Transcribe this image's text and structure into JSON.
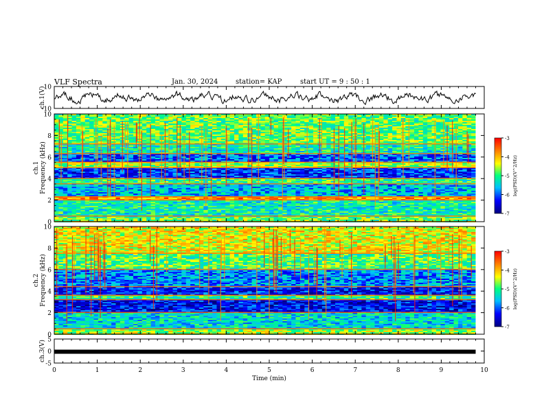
{
  "header": {
    "title": "VLF Spectra",
    "date": "Jan. 30, 2024",
    "station": "station= KAP",
    "start": "start  UT =   9 : 50 : 1"
  },
  "chart_data": [
    {
      "type": "line",
      "panel": "ch1-waveform",
      "ylabel": "ch.1(V)",
      "ylim": [
        -10,
        10
      ],
      "yticks": [
        "10",
        "-10"
      ],
      "xlim": [
        0,
        10
      ],
      "x_range_of_data": [
        0,
        9.8
      ],
      "approx_shape": "noisy oscillation centered near 0 V, amplitude about ±4 V"
    },
    {
      "type": "heatmap",
      "panel": "ch1-spectrogram",
      "ylabel": "ch.1 Frequency (kHz)",
      "ylim": [
        0,
        10
      ],
      "yticks": [
        "0",
        "2",
        "4",
        "6",
        "8",
        "10"
      ],
      "xlim": [
        0,
        10
      ],
      "colorbar": {
        "label": "log(PSD)(V^2/Hz)",
        "range": [
          -7,
          -3
        ],
        "ticks": [
          "-3",
          "-4",
          "-5",
          "-6",
          "-7"
        ]
      },
      "bands_khz": [
        {
          "from": 0,
          "to": 0.5,
          "level": -4.8
        },
        {
          "from": 0.5,
          "to": 2.0,
          "level": -5.2
        },
        {
          "from": 2.0,
          "to": 2.3,
          "level": -3.8
        },
        {
          "from": 2.3,
          "to": 3.5,
          "level": -5.6
        },
        {
          "from": 3.5,
          "to": 4.0,
          "level": -5.0
        },
        {
          "from": 4.0,
          "to": 5.0,
          "level": -6.2
        },
        {
          "from": 5.0,
          "to": 5.5,
          "level": -4.6
        },
        {
          "from": 5.5,
          "to": 6.3,
          "level": -6.0
        },
        {
          "from": 6.3,
          "to": 7.2,
          "level": -5.2
        },
        {
          "from": 7.2,
          "to": 10.0,
          "level": -4.8
        }
      ]
    },
    {
      "type": "heatmap",
      "panel": "ch2-spectrogram",
      "ylabel": "ch.2 Frequency (kHz)",
      "ylim": [
        0,
        10
      ],
      "yticks": [
        "0",
        "2",
        "4",
        "6",
        "8",
        "10"
      ],
      "xlim": [
        0,
        10
      ],
      "colorbar": {
        "label": "log(PSD)(V^2/Hz)",
        "range": [
          -7,
          -3
        ],
        "ticks": [
          "-3",
          "-4",
          "-5",
          "-6",
          "-7"
        ]
      },
      "bands_khz": [
        {
          "from": 0,
          "to": 0.5,
          "level": -4.6
        },
        {
          "from": 0.5,
          "to": 2.0,
          "level": -5.4
        },
        {
          "from": 2.0,
          "to": 3.2,
          "level": -6.4
        },
        {
          "from": 3.2,
          "to": 3.6,
          "level": -5.0
        },
        {
          "from": 3.6,
          "to": 4.4,
          "level": -6.3
        },
        {
          "from": 4.4,
          "to": 6.0,
          "level": -5.8
        },
        {
          "from": 6.0,
          "to": 7.5,
          "level": -4.9
        },
        {
          "from": 7.5,
          "to": 10.0,
          "level": -4.3
        }
      ]
    },
    {
      "type": "line",
      "panel": "ch3-waveform",
      "ylabel": "ch.3(V)",
      "ylim": [
        -5,
        5
      ],
      "yticks": [
        "5",
        "0",
        "-5"
      ],
      "xlim": [
        0,
        10
      ],
      "x_range_of_data": [
        0,
        9.8
      ],
      "approx_value": -0.3
    }
  ],
  "xaxis": {
    "label": "Time  (min)",
    "ticks": [
      "0",
      "1",
      "2",
      "3",
      "4",
      "5",
      "6",
      "7",
      "8",
      "9",
      "10"
    ]
  },
  "colors": {
    "colormap": [
      "#00007f",
      "#0000ff",
      "#00bfff",
      "#00ff80",
      "#ffff00",
      "#ff7f00",
      "#ff0000"
    ]
  }
}
